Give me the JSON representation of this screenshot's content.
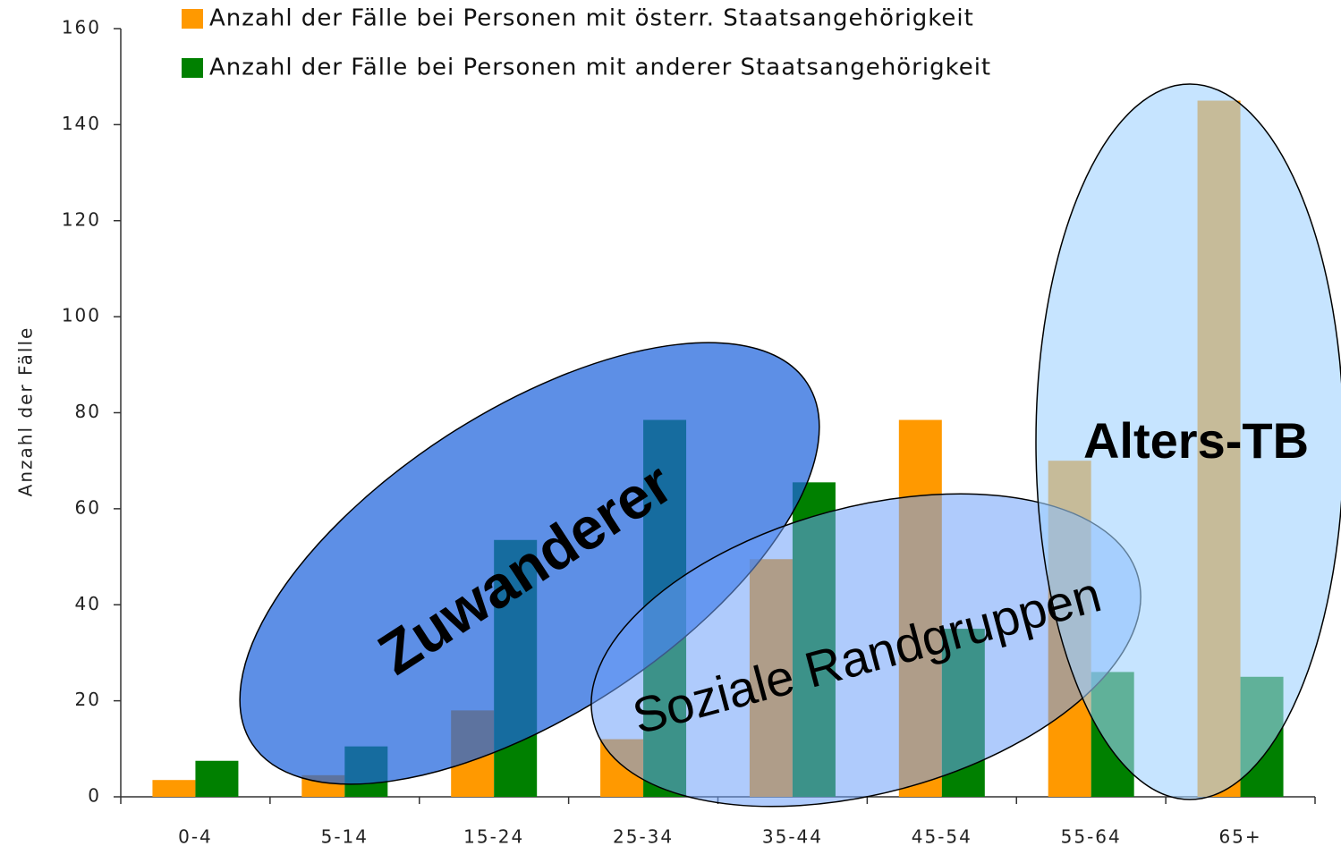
{
  "chart_data": {
    "type": "bar",
    "y_label": "Anzahl der Fälle",
    "categories": [
      "0-4",
      "5-14",
      "15-24",
      "25-34",
      "35-44",
      "45-54",
      "55-64",
      "65+"
    ],
    "series": [
      {
        "name": "Anzahl der Fälle bei Personen mit österr. Staatsangehörigkeit",
        "color": "#ff9900",
        "values": [
          3.5,
          4.5,
          18,
          12,
          49.5,
          78.5,
          70,
          145
        ]
      },
      {
        "name": "Anzahl der Fälle bei Personen mit anderer Staatsangehörigkeit",
        "color": "#008000",
        "values": [
          7.5,
          10.5,
          53.5,
          78.5,
          65.5,
          35,
          26,
          25
        ]
      }
    ],
    "ylim": [
      0,
      160
    ],
    "yticks": [
      0,
      20,
      40,
      60,
      80,
      100,
      120,
      140,
      160
    ],
    "annotations": [
      {
        "text": "Zuwanderer"
      },
      {
        "text": "Soziale Randgruppen"
      },
      {
        "text": "Alters-TB"
      }
    ]
  }
}
